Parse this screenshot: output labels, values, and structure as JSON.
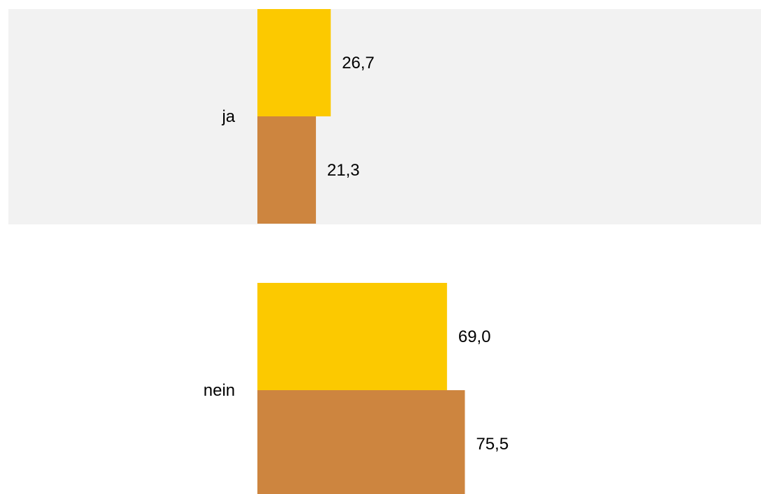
{
  "chart_data": {
    "type": "bar",
    "orientation": "horizontal",
    "categories": [
      "ja",
      "nein"
    ],
    "series": [
      {
        "values": [
          26.7,
          69.0
        ],
        "value_labels": [
          "26,7",
          "69,0"
        ],
        "color": "#FCC900"
      },
      {
        "values": [
          21.3,
          75.5
        ],
        "value_labels": [
          "21,3",
          "75,5"
        ],
        "color": "#CD853F"
      }
    ],
    "title": "",
    "xlabel": "",
    "ylabel": "",
    "xlim": [
      0,
      100
    ],
    "grid": false,
    "legend": "none",
    "band_color": "#F2F2F2"
  }
}
